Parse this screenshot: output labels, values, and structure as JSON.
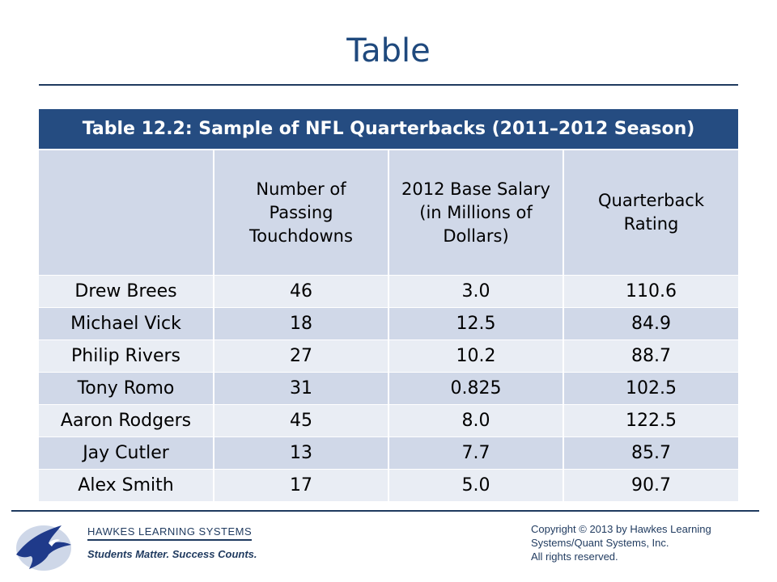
{
  "slide": {
    "title": "Table"
  },
  "table": {
    "caption": "Table 12.2: Sample of NFL Quarterbacks (2011–2012 Season)",
    "headers": [
      "",
      "Number of Passing Touchdowns",
      "2012 Base Salary\n(in Millions of Dollars)",
      "Quarterback Rating"
    ],
    "rows": [
      [
        "Drew Brees",
        "46",
        "3.0",
        "110.6"
      ],
      [
        "Michael Vick",
        "18",
        "12.5",
        "84.9"
      ],
      [
        "Philip Rivers",
        "27",
        "10.2",
        "88.7"
      ],
      [
        "Tony Romo",
        "31",
        "0.825",
        "102.5"
      ],
      [
        "Aaron Rodgers",
        "45",
        "8.0",
        "122.5"
      ],
      [
        "Jay Cutler",
        "13",
        "7.7",
        "85.7"
      ],
      [
        "Alex Smith",
        "17",
        "5.0",
        "90.7"
      ]
    ]
  },
  "footer": {
    "company": "HAWKES LEARNING SYSTEMS",
    "tagline": "Students Matter. Success Counts.",
    "copyright_lines": [
      "Copyright © 2013 by Hawkes Learning",
      "Systems/Quant Systems, Inc.",
      "All rights reserved."
    ],
    "logo_icon": "eagle-logo-icon"
  },
  "colors": {
    "title": "#1f497d",
    "header_band": "#254c81",
    "row_dark": "#d0d8e8",
    "row_light": "#e9edf4"
  }
}
